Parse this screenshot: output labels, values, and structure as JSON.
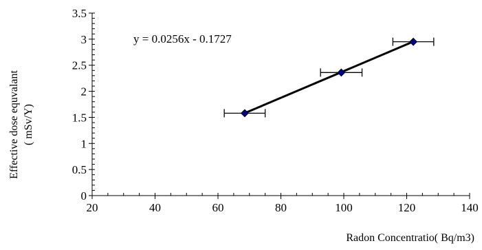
{
  "chart_data": {
    "type": "scatter",
    "xlabel": "Radon Concentratio( Bq/m3)",
    "ylabel_lines": [
      "Effective dose equvalant",
      "( mSv/Y)"
    ],
    "equation": "y = 0.0256x - 0.1727",
    "xlim": [
      20,
      140
    ],
    "ylim": [
      0,
      3.5
    ],
    "x_ticks": [
      20,
      40,
      60,
      80,
      100,
      120,
      140
    ],
    "y_ticks": [
      0,
      0.5,
      1,
      1.5,
      2,
      2.5,
      3,
      3.5
    ],
    "y_tick_labels": [
      "0",
      "0.5",
      "1",
      "1.5",
      "2",
      "2.5",
      "3",
      "3.5"
    ],
    "x_minor_step": 5,
    "y_minor_step": 0.1,
    "grid": false,
    "legend": "none",
    "series": [
      {
        "x": [
          68.5,
          99.2,
          122.1
        ],
        "y": [
          1.58,
          2.36,
          2.95
        ],
        "x_error": [
          6.5,
          6.6,
          6.5
        ],
        "marker": "diamond",
        "color": "#000080"
      }
    ],
    "trendline": {
      "slope": 0.0256,
      "intercept": -0.1727,
      "x_range": [
        68.5,
        122.1
      ],
      "color": "#000000"
    }
  }
}
